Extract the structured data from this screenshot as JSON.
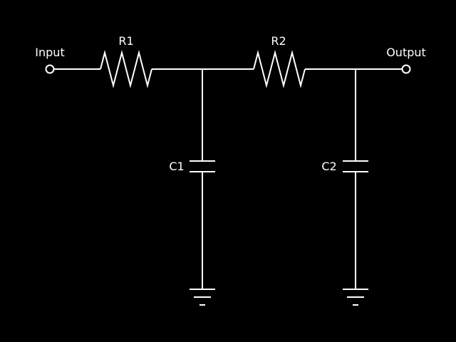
{
  "colors": {
    "background": "#000000",
    "line": "#ffffff",
    "text": "#ffffff"
  },
  "labels": {
    "input": "Input",
    "output": "Output",
    "r1": "R1",
    "r2": "R2",
    "c1": "C1",
    "c2": "C2"
  },
  "components": [
    {
      "type": "terminal",
      "label": "Input"
    },
    {
      "type": "resistor",
      "label": "R1"
    },
    {
      "type": "resistor",
      "label": "R2"
    },
    {
      "type": "capacitor",
      "label": "C1"
    },
    {
      "type": "capacitor",
      "label": "C2"
    },
    {
      "type": "ground",
      "count": 2
    },
    {
      "type": "terminal",
      "label": "Output"
    }
  ]
}
